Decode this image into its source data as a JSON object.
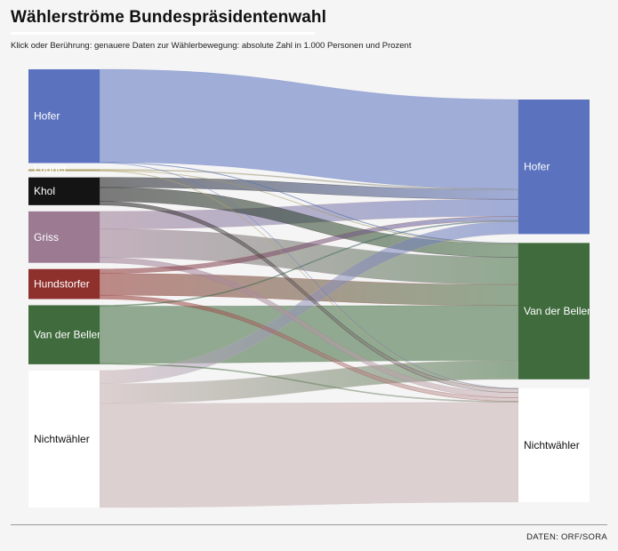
{
  "header": {
    "title": "Wählerströme Bundespräsidentenwahl",
    "subtitle": "Klick oder Berührung: genauere Daten zur Wählerbewegung: absolute Zahl in 1.000 Personen und Prozent"
  },
  "footer": {
    "source": "DATEN: ORF/SORA"
  },
  "chart_data": {
    "type": "sankey",
    "sources": [
      {
        "id": "hofer1",
        "label": "Hofer",
        "value": 1485,
        "color": "#5b72bf",
        "text_color": "#ffffff"
      },
      {
        "id": "lugner",
        "label": "Lugner",
        "value": 30,
        "color": "#b1a46e",
        "text_color": "#ffffff"
      },
      {
        "id": "khol",
        "label": "Khol",
        "value": 440,
        "color": "#141414",
        "text_color": "#ffffff"
      },
      {
        "id": "griss",
        "label": "Griss",
        "value": 815,
        "color": "#9b7a92",
        "text_color": "#ffffff"
      },
      {
        "id": "hundstorfer",
        "label": "Hundstorfer",
        "value": 475,
        "color": "#8e302c",
        "text_color": "#ffffff"
      },
      {
        "id": "vdb1",
        "label": "Van der Bellen",
        "value": 935,
        "color": "#3f6b3d",
        "text_color": "#ffffff"
      },
      {
        "id": "nw1",
        "label": "Nichtwähler",
        "value": 2170,
        "color": "#ffffff",
        "text_color": "#111111"
      }
    ],
    "targets": [
      {
        "id": "hofer2",
        "label": "Hofer",
        "value": 2220,
        "color": "#5b72bf",
        "text_color": "#ffffff"
      },
      {
        "id": "vdb2",
        "label": "Van der Bellen",
        "value": 2250,
        "color": "#3f6b3d",
        "text_color": "#ffffff"
      },
      {
        "id": "nw2",
        "label": "Nichtwähler",
        "value": 1880,
        "color": "#ffffff",
        "text_color": "#111111"
      }
    ],
    "flows": [
      {
        "from": "hofer1",
        "to": "hofer2",
        "value": 1470
      },
      {
        "from": "hofer1",
        "to": "vdb2",
        "value": 10
      },
      {
        "from": "hofer1",
        "to": "nw2",
        "value": 5
      },
      {
        "from": "lugner",
        "to": "hofer2",
        "value": 15
      },
      {
        "from": "lugner",
        "to": "vdb2",
        "value": 7
      },
      {
        "from": "lugner",
        "to": "nw2",
        "value": 8
      },
      {
        "from": "khol",
        "to": "hofer2",
        "value": 160
      },
      {
        "from": "khol",
        "to": "vdb2",
        "value": 220
      },
      {
        "from": "khol",
        "to": "nw2",
        "value": 60
      },
      {
        "from": "griss",
        "to": "hofer2",
        "value": 280
      },
      {
        "from": "griss",
        "to": "vdb2",
        "value": 450
      },
      {
        "from": "griss",
        "to": "nw2",
        "value": 85
      },
      {
        "from": "hundstorfer",
        "to": "hofer2",
        "value": 70
      },
      {
        "from": "hundstorfer",
        "to": "vdb2",
        "value": 345
      },
      {
        "from": "hundstorfer",
        "to": "nw2",
        "value": 60
      },
      {
        "from": "vdb1",
        "to": "hofer2",
        "value": 15
      },
      {
        "from": "vdb1",
        "to": "vdb2",
        "value": 905
      },
      {
        "from": "vdb1",
        "to": "nw2",
        "value": 15
      },
      {
        "from": "nw1",
        "to": "hofer2",
        "value": 210
      },
      {
        "from": "nw1",
        "to": "vdb2",
        "value": 313
      },
      {
        "from": "nw1",
        "to": "nw2",
        "value": 1647
      }
    ]
  }
}
